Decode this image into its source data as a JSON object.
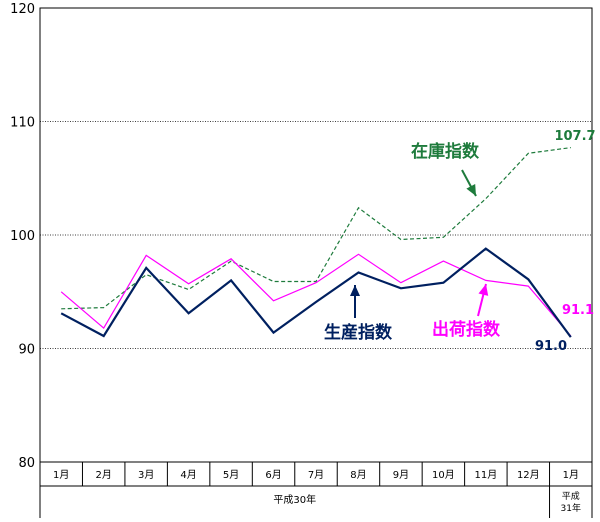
{
  "chart_data": {
    "type": "line",
    "categories": [
      "1月",
      "2月",
      "3月",
      "4月",
      "5月",
      "6月",
      "7月",
      "8月",
      "9月",
      "10月",
      "11月",
      "12月",
      "1月"
    ],
    "era_labels": [
      "平成30年",
      "平成",
      "31年"
    ],
    "ylim": [
      80,
      120
    ],
    "yticks": [
      80,
      90,
      100,
      110,
      120
    ],
    "grid": true,
    "series": [
      {
        "name": "生産指数",
        "color": "#002060",
        "style": "solid-thick",
        "values": [
          93.1,
          91.1,
          97.1,
          93.1,
          96.0,
          91.4,
          94.1,
          96.7,
          95.3,
          95.8,
          98.8,
          96.1,
          91.0
        ],
        "end_label": "91.0"
      },
      {
        "name": "出荷指数",
        "color": "#FF00FF",
        "style": "solid-thin",
        "values": [
          95.0,
          91.8,
          98.2,
          95.7,
          97.9,
          94.2,
          95.8,
          98.3,
          95.8,
          97.7,
          96.0,
          95.5,
          91.1
        ],
        "end_label": "91.1"
      },
      {
        "name": "在庫指数",
        "color": "#1E7B3C",
        "style": "dashed",
        "values": [
          93.5,
          93.6,
          96.5,
          95.2,
          97.7,
          95.9,
          95.9,
          102.4,
          99.6,
          99.8,
          103.2,
          107.2,
          107.7
        ],
        "end_label": "107.7"
      }
    ]
  }
}
